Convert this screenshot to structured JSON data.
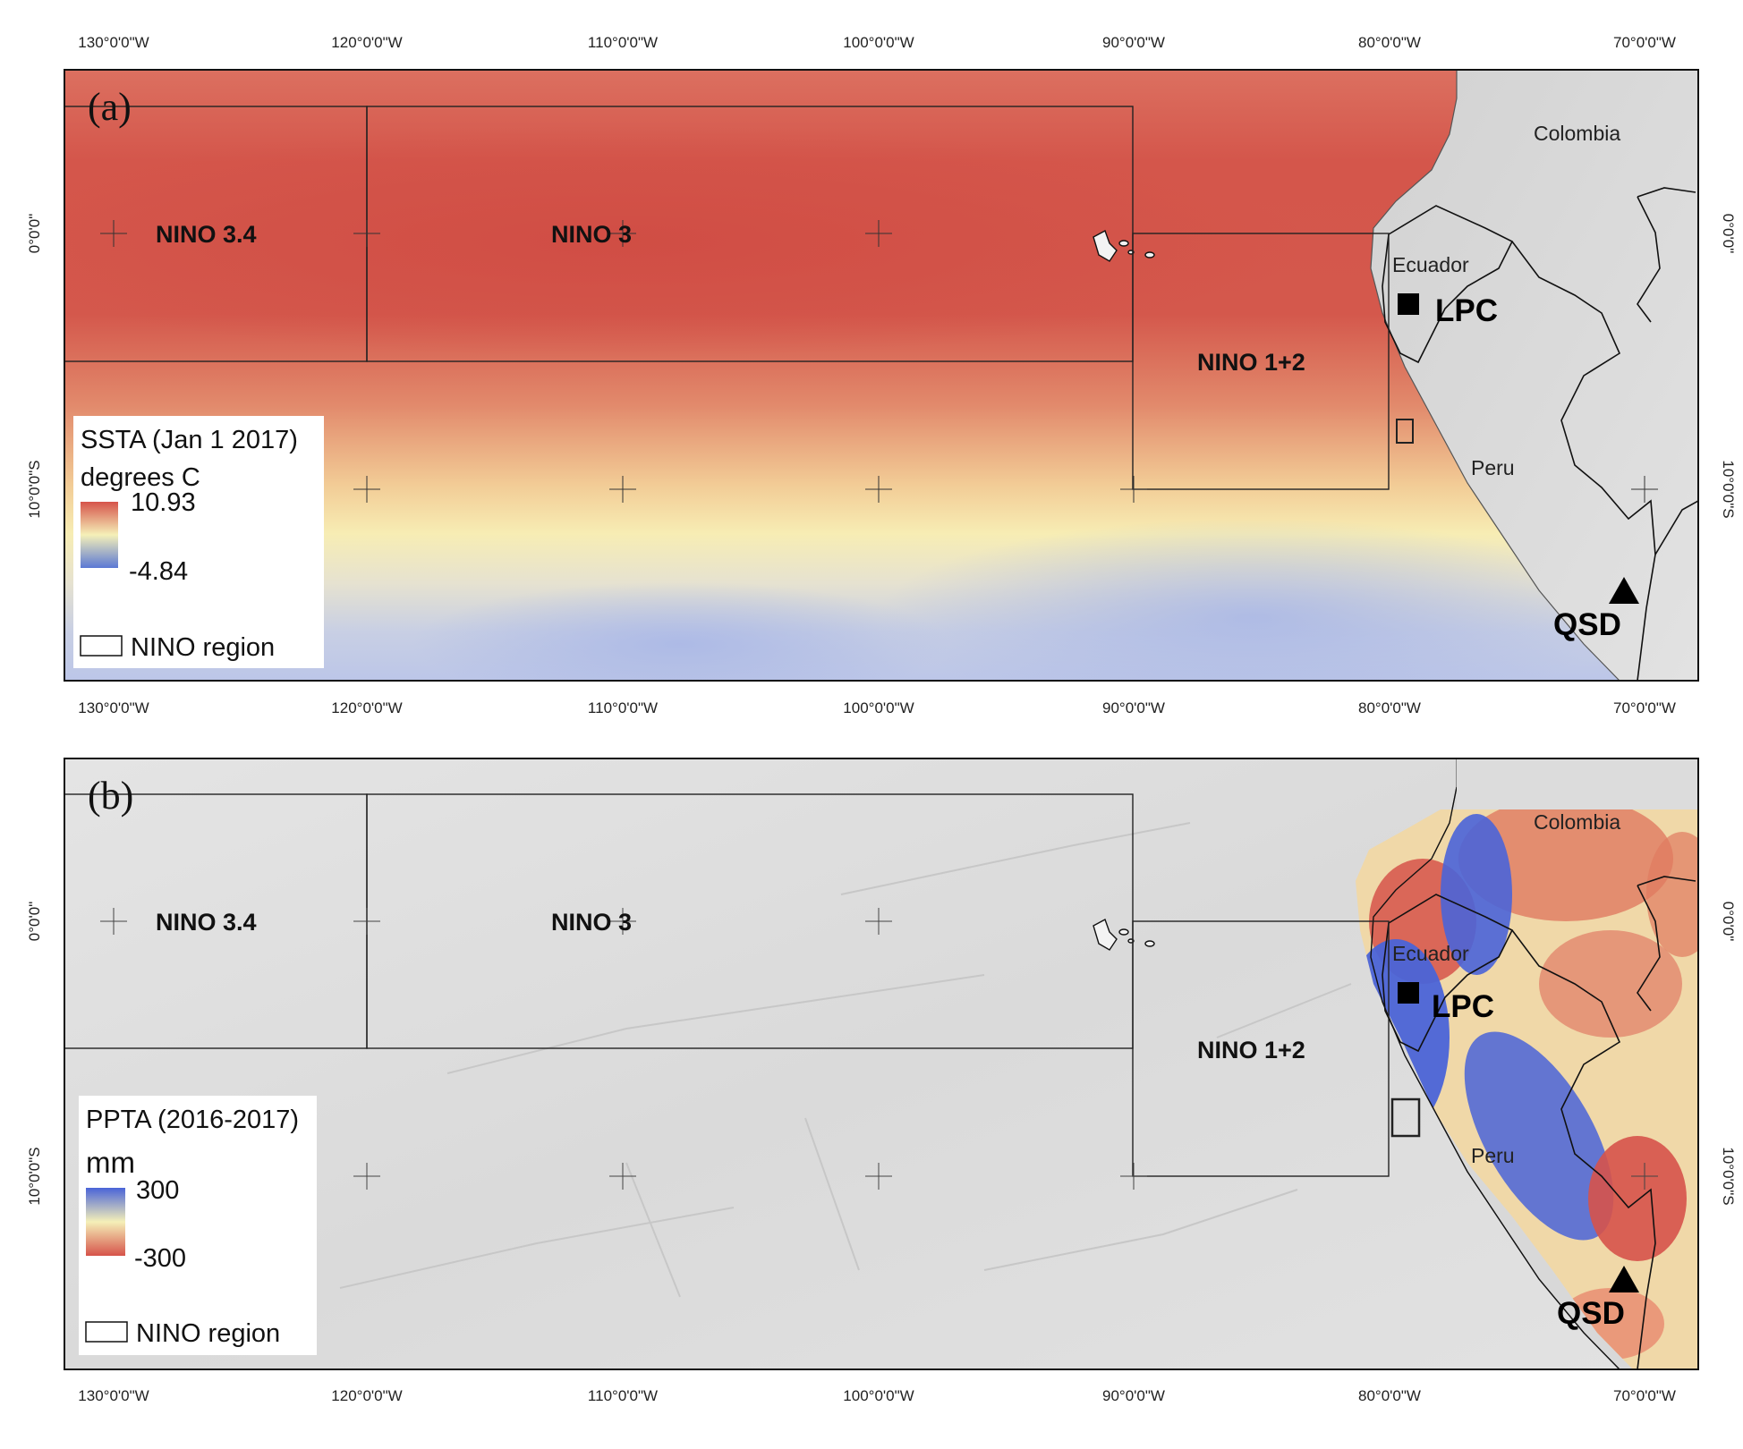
{
  "x_ticks": [
    "130°0'0\"W",
    "120°0'0\"W",
    "110°0'0\"W",
    "100°0'0\"W",
    "90°0'0\"W",
    "80°0'0\"W",
    "70°0'0\"W"
  ],
  "y_ticks": [
    "0°0'0\"",
    "10°0'0\"S"
  ],
  "regions": {
    "nino34": "NINO 3.4",
    "nino3": "NINO 3",
    "nino12": "NINO 1+2"
  },
  "countries": {
    "colombia": "Colombia",
    "ecuador": "Ecuador",
    "peru": "Peru"
  },
  "sites": {
    "lpc": "LPC",
    "qsd": "QSD"
  },
  "panel_a": {
    "label": "(a)",
    "legend": {
      "title": "SSTA (Jan 1 2017)",
      "unit": "degrees C",
      "max": "10.93",
      "min": "-4.84",
      "region_label": "NINO region",
      "colors": {
        "high": "#d6534a",
        "mid": "#f5f0b8",
        "low": "#5b78d4"
      }
    }
  },
  "panel_b": {
    "label": "(b)",
    "legend": {
      "title": "PPTA (2016-2017)",
      "unit": "mm",
      "max": "300",
      "min": "-300",
      "region_label": "NINO region",
      "colors": {
        "high": "#4a64d8",
        "mid": "#f5f0b8",
        "low": "#d6534a"
      }
    }
  }
}
